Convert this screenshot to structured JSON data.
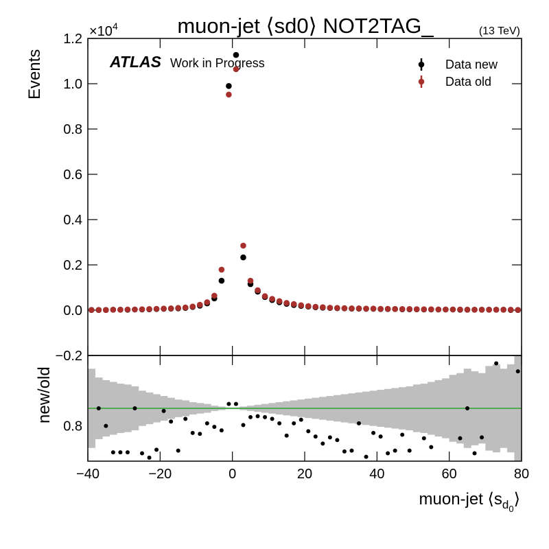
{
  "chart_data": [
    {
      "type": "scatter",
      "title": "muon-jet ⟨sd0⟩ NOT2TAG_",
      "subtitle": "(13 TeV)",
      "experiment": "ATLAS",
      "status": "Work in Progress",
      "ylabel": "Events",
      "y_multiplier": "×10",
      "y_exponent": "4",
      "legend": "upper right",
      "xlim": [
        -40,
        80
      ],
      "ylim": [
        -0.2,
        1.2
      ],
      "yticks": [
        {
          "value": -0.2,
          "label": "−0.2"
        },
        {
          "value": 0,
          "label": "0.0"
        },
        0.2,
        0.4,
        0.6,
        0.8,
        {
          "value": 1,
          "label": "1.0"
        },
        1.2
      ],
      "x": [
        -39,
        -37,
        -35,
        -33,
        -31,
        -29,
        -27,
        -25,
        -23,
        -21,
        -19,
        -17,
        -15,
        -13,
        -11,
        -9,
        -7,
        -5,
        -3,
        -1,
        1,
        3,
        5,
        7,
        9,
        11,
        13,
        15,
        17,
        19,
        21,
        23,
        25,
        27,
        29,
        31,
        33,
        35,
        37,
        39,
        41,
        43,
        45,
        47,
        49,
        51,
        53,
        55,
        57,
        59,
        61,
        63,
        65,
        67,
        69,
        71,
        73,
        75,
        77,
        79
      ],
      "series": [
        {
          "name": "Data new",
          "color": "#000000",
          "values": [
            0.001,
            0.001,
            0.001,
            0.002,
            0.002,
            0.002,
            0.003,
            0.003,
            0.004,
            0.005,
            0.006,
            0.007,
            0.008,
            0.01,
            0.014,
            0.02,
            0.03,
            0.052,
            0.13,
            0.99,
            1.127,
            0.233,
            0.115,
            0.082,
            0.058,
            0.045,
            0.035,
            0.028,
            0.023,
            0.019,
            0.016,
            0.013,
            0.011,
            0.01,
            0.009,
            0.008,
            0.007,
            0.007,
            0.006,
            0.006,
            0.005,
            0.005,
            0.005,
            0.004,
            0.004,
            0.004,
            0.003,
            0.003,
            0.003,
            0.003,
            0.003,
            0.002,
            0.002,
            0.002,
            0.002,
            0.002,
            0.002,
            0.002,
            0.001,
            0.001
          ]
        },
        {
          "name": "Data old",
          "color": "#a8302c",
          "values": [
            0.001,
            0.001,
            0.001,
            0.002,
            0.002,
            0.003,
            0.003,
            0.004,
            0.005,
            0.006,
            0.007,
            0.008,
            0.01,
            0.012,
            0.016,
            0.024,
            0.035,
            0.064,
            0.179,
            0.952,
            1.064,
            0.285,
            0.13,
            0.088,
            0.062,
            0.05,
            0.04,
            0.032,
            0.027,
            0.022,
            0.018,
            0.015,
            0.013,
            0.011,
            0.01,
            0.009,
            0.008,
            0.008,
            0.007,
            0.007,
            0.006,
            0.006,
            0.005,
            0.005,
            0.005,
            0.004,
            0.004,
            0.004,
            0.003,
            0.003,
            0.003,
            0.003,
            0.002,
            0.002,
            0.002,
            0.002,
            0.002,
            0.002,
            0.002,
            0.001
          ]
        }
      ]
    },
    {
      "type": "ratio",
      "ylabel": "new/old",
      "xlabel": [
        "muon-jet ⟨s",
        "d",
        "0",
        "⟩"
      ],
      "xlim": [
        -40,
        80
      ],
      "xticks": [
        {
          "value": -40,
          "label": "−40"
        },
        {
          "value": -20,
          "label": "−20"
        },
        0,
        20,
        40,
        60,
        80
      ],
      "ylim": [
        0.4,
        1.6
      ],
      "yticks": [
        0.8
      ],
      "reference": {
        "value": 1,
        "color": "#2ca02c"
      },
      "x": [
        -39,
        -37,
        -35,
        -33,
        -31,
        -29,
        -27,
        -25,
        -23,
        -21,
        -19,
        -17,
        -15,
        -13,
        -11,
        -9,
        -7,
        -5,
        -3,
        -1,
        1,
        3,
        5,
        7,
        9,
        11,
        13,
        15,
        17,
        19,
        21,
        23,
        25,
        27,
        29,
        31,
        33,
        35,
        37,
        39,
        41,
        43,
        45,
        47,
        49,
        51,
        53,
        55,
        57,
        59,
        61,
        63,
        65,
        67,
        69,
        71,
        73,
        75,
        77,
        79
      ],
      "band": {
        "color": "#bebebe",
        "values": [
          0.45,
          0.35,
          0.32,
          0.3,
          0.28,
          0.27,
          0.25,
          0.2,
          0.18,
          0.16,
          0.14,
          0.12,
          0.1,
          0.09,
          0.07,
          0.06,
          0.05,
          0.03,
          0.02,
          0.01,
          0.01,
          0.02,
          0.03,
          0.04,
          0.05,
          0.06,
          0.07,
          0.08,
          0.09,
          0.1,
          0.11,
          0.12,
          0.13,
          0.14,
          0.15,
          0.16,
          0.17,
          0.18,
          0.19,
          0.2,
          0.21,
          0.22,
          0.23,
          0.24,
          0.25,
          0.27,
          0.28,
          0.3,
          0.32,
          0.34,
          0.38,
          0.4,
          0.45,
          0.42,
          0.4,
          0.48,
          0.5,
          0.45,
          0.5,
          0.6
        ]
      },
      "series": [
        {
          "color": "#000000",
          "values": [
            null,
            1.0,
            0.8,
            0.5,
            0.5,
            0.5,
            1.0,
            0.49,
            0.44,
            0.53,
            0.97,
            0.85,
            0.52,
            0.88,
            0.72,
            0.71,
            0.83,
            0.79,
            0.75,
            1.05,
            1.05,
            0.81,
            0.9,
            0.91,
            0.9,
            0.88,
            0.83,
            0.69,
            0.83,
            0.87,
            0.74,
            0.68,
            0.6,
            0.67,
            0.64,
            0.51,
            0.52,
            0.83,
            0.45,
            0.72,
            0.68,
            0.49,
            0.52,
            0.7,
            0.52,
            null,
            0.66,
            0.56,
            null,
            null,
            null,
            0.66,
            1.0,
            0.49,
            0.67,
            null,
            1.51,
            null,
            null,
            1.42
          ]
        }
      ]
    }
  ]
}
